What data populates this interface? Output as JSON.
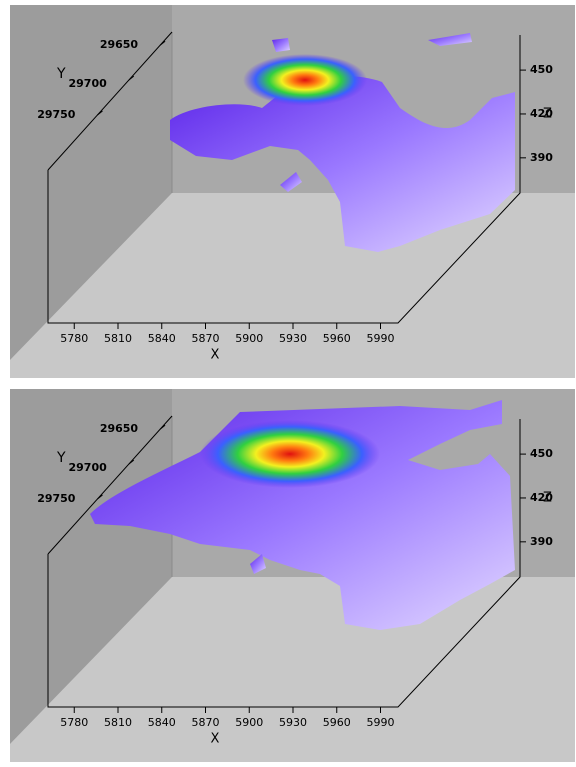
{
  "chart_data": [
    {
      "type": "isosurface3d",
      "x_label": "X",
      "y_label": "Y",
      "z_label": "Z",
      "xlim": [
        5762,
        6002
      ],
      "xticks": [
        5780,
        5810,
        5840,
        5870,
        5900,
        5930,
        5960,
        5990
      ],
      "ylim": [
        29631,
        29829
      ],
      "yticks": [
        29650,
        29700,
        29750
      ],
      "zlim": [
        368,
        474
      ],
      "zticks": [
        450,
        420,
        390
      ]
    },
    {
      "type": "isosurface3d",
      "x_label": "X",
      "y_label": "Y",
      "z_label": "Z",
      "xlim": [
        5762,
        6002
      ],
      "xticks": [
        5780,
        5810,
        5840,
        5870,
        5900,
        5930,
        5960,
        5990
      ],
      "ylim": [
        29631,
        29829
      ],
      "yticks": [
        29650,
        29700,
        29750
      ],
      "zlim": [
        368,
        474
      ],
      "zticks": [
        450,
        420,
        390
      ]
    }
  ]
}
